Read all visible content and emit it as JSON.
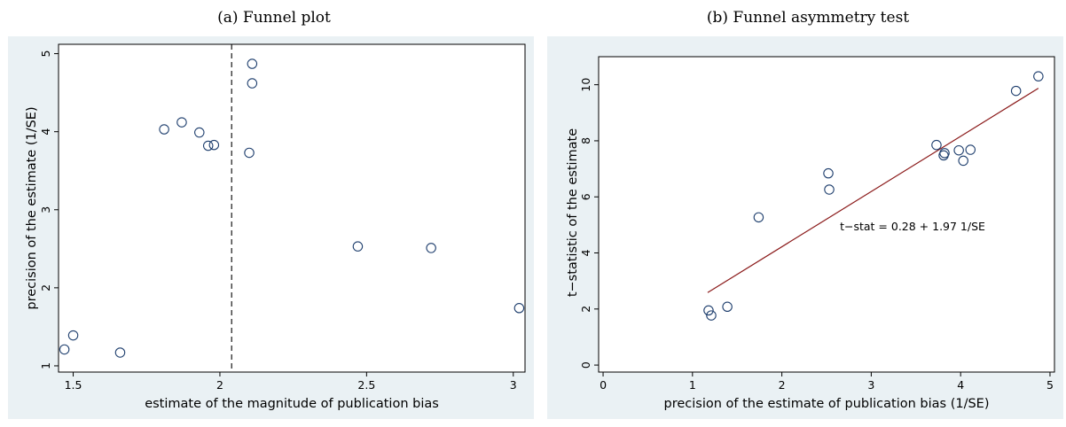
{
  "chart_data": [
    {
      "type": "scatter",
      "caption": "(a) Funnel plot",
      "xlabel": "estimate of the magnitude of publication bias",
      "ylabel": "precision of the estimate (1/SE)",
      "xlim": [
        1.45,
        3.04
      ],
      "ylim": [
        0.92,
        5.12
      ],
      "xticks": [
        1.5,
        2,
        2.5,
        3
      ],
      "xtick_labels": [
        "1.5",
        "2",
        "2.5",
        "3"
      ],
      "yticks": [
        1,
        2,
        3,
        4,
        5
      ],
      "ytick_labels": [
        "1",
        "2",
        "3",
        "4",
        "5"
      ],
      "grid": false,
      "vline": 2.04,
      "points": [
        {
          "x": 1.47,
          "y": 1.21
        },
        {
          "x": 1.5,
          "y": 1.39
        },
        {
          "x": 1.66,
          "y": 1.17
        },
        {
          "x": 1.81,
          "y": 4.03
        },
        {
          "x": 1.87,
          "y": 4.12
        },
        {
          "x": 1.93,
          "y": 3.99
        },
        {
          "x": 1.96,
          "y": 3.82
        },
        {
          "x": 1.98,
          "y": 3.83
        },
        {
          "x": 2.1,
          "y": 3.73
        },
        {
          "x": 2.11,
          "y": 4.87
        },
        {
          "x": 2.11,
          "y": 4.62
        },
        {
          "x": 2.47,
          "y": 2.53
        },
        {
          "x": 2.72,
          "y": 2.51
        },
        {
          "x": 3.02,
          "y": 1.74
        }
      ]
    },
    {
      "type": "scatter",
      "caption": "(b) Funnel asymmetry test",
      "xlabel": "precision of the estimate of publication bias (1/SE)",
      "ylabel": "t−statistic of the estimate",
      "xlim": [
        -0.05,
        5.05
      ],
      "ylim": [
        -0.25,
        11.0
      ],
      "xticks": [
        0,
        1,
        2,
        3,
        4,
        5
      ],
      "xtick_labels": [
        "0",
        "1",
        "2",
        "3",
        "4",
        "5"
      ],
      "yticks": [
        0,
        2,
        4,
        6,
        8,
        10
      ],
      "ytick_labels": [
        "0",
        "2",
        "4",
        "6",
        "8",
        "10"
      ],
      "grid": false,
      "fit_line": {
        "intercept": 0.28,
        "slope": 1.97,
        "x_range": [
          1.17,
          4.87
        ],
        "color": "#8b1a1a"
      },
      "annotation": {
        "text": "t−stat = 0.28 + 1.97 1/SE",
        "x": 2.65,
        "y": 4.8
      },
      "points": [
        {
          "x": 1.18,
          "y": 1.95
        },
        {
          "x": 1.21,
          "y": 1.77
        },
        {
          "x": 1.39,
          "y": 2.08
        },
        {
          "x": 1.74,
          "y": 5.27
        },
        {
          "x": 2.52,
          "y": 6.84
        },
        {
          "x": 2.53,
          "y": 6.26
        },
        {
          "x": 3.73,
          "y": 7.85
        },
        {
          "x": 3.81,
          "y": 7.48
        },
        {
          "x": 3.82,
          "y": 7.56
        },
        {
          "x": 3.98,
          "y": 7.66
        },
        {
          "x": 4.03,
          "y": 7.29
        },
        {
          "x": 4.11,
          "y": 7.68
        },
        {
          "x": 4.62,
          "y": 9.78
        },
        {
          "x": 4.87,
          "y": 10.3
        }
      ]
    }
  ]
}
